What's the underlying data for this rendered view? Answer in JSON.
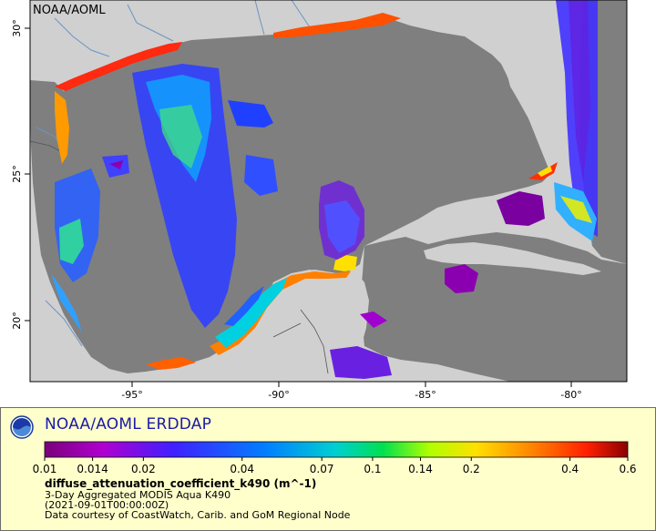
{
  "map": {
    "source_tag": "NOAA/AOML",
    "lat_ticks": [
      {
        "value": 30,
        "label": "30°"
      },
      {
        "value": 25,
        "label": "25°"
      },
      {
        "value": 20,
        "label": "20°"
      }
    ],
    "lon_ticks": [
      {
        "value": -95,
        "label": "-95°"
      },
      {
        "value": -90,
        "label": "-90°"
      },
      {
        "value": -85,
        "label": "-85°"
      },
      {
        "value": -80,
        "label": "-80°"
      }
    ],
    "colors": {
      "land": "#d0d0d0",
      "no_data_ocean": "#7f7f7f",
      "river": "#6a95c7",
      "border": "#555555"
    }
  },
  "legend": {
    "brand_title": "NOAA/AOML ERDDAP",
    "colorbar": {
      "scale": "log",
      "range": [
        0.01,
        0.6
      ],
      "tick_labels": [
        "0.01",
        "0.014",
        "0.02",
        "0.04",
        "0.07",
        "0.1",
        "0.14",
        "0.2",
        "0.4",
        "0.6"
      ],
      "colors": [
        "#7a007a",
        "#b000d0",
        "#4020ff",
        "#0080ff",
        "#00d0d0",
        "#00e050",
        "#b0ff00",
        "#ffe000",
        "#ff8000",
        "#ff2000",
        "#8b0000"
      ]
    },
    "variable": "diffuse_attenuation_coefficient_k490 (m^-1)",
    "dataset": "3-Day Aggregated MODIS Aqua K490",
    "time": "(2021-09-01T00:00:00Z)",
    "credit": "Data courtesy of CoastWatch, Carib. and GoM Regional Node"
  }
}
